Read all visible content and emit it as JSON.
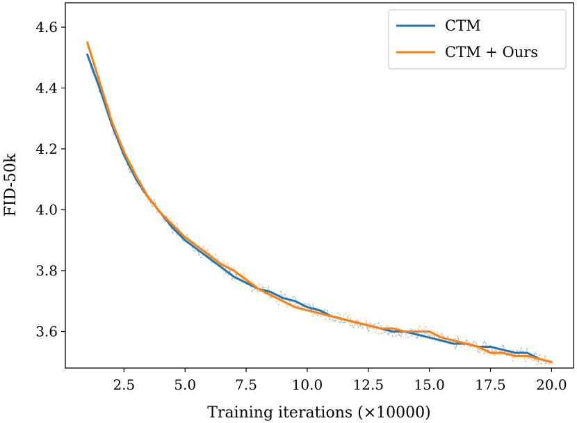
{
  "chart_data": {
    "type": "line",
    "title": "",
    "xlabel": "Training iterations (×10000)",
    "ylabel": "FID-50k",
    "xlim": [
      0.1,
      20.9
    ],
    "ylim": [
      3.48,
      4.68
    ],
    "xticks": [
      2.5,
      5.0,
      7.5,
      10.0,
      12.5,
      15.0,
      17.5,
      20.0
    ],
    "xtick_labels": [
      "2.5",
      "5.0",
      "7.5",
      "10.0",
      "12.5",
      "15.0",
      "17.5",
      "20.0"
    ],
    "yticks": [
      3.6,
      3.8,
      4.0,
      4.2,
      4.4,
      4.6
    ],
    "ytick_labels": [
      "3.6",
      "3.8",
      "4.0",
      "4.2",
      "4.4",
      "4.6"
    ],
    "grid": false,
    "legend_position": "top-right",
    "series": [
      {
        "name": "CTM",
        "color": "#1f77b4",
        "style": "solid-smoothed",
        "x": [
          1.0,
          1.5,
          2.0,
          2.5,
          3.0,
          3.5,
          4.0,
          4.5,
          5.0,
          5.5,
          6.0,
          6.5,
          7.0,
          7.5,
          8.0,
          8.5,
          9.0,
          9.5,
          10.0,
          10.5,
          11.0,
          11.5,
          12.0,
          12.5,
          13.0,
          13.5,
          14.0,
          14.5,
          15.0,
          15.5,
          16.0,
          16.5,
          17.0,
          17.5,
          18.0,
          18.5,
          19.0,
          19.5,
          20.0
        ],
        "y": [
          4.51,
          4.4,
          4.28,
          4.18,
          4.1,
          4.04,
          3.99,
          3.94,
          3.9,
          3.87,
          3.84,
          3.81,
          3.78,
          3.76,
          3.74,
          3.73,
          3.71,
          3.7,
          3.68,
          3.67,
          3.65,
          3.64,
          3.63,
          3.62,
          3.61,
          3.6,
          3.6,
          3.59,
          3.58,
          3.57,
          3.56,
          3.56,
          3.55,
          3.55,
          3.54,
          3.53,
          3.53,
          3.51,
          3.5
        ]
      },
      {
        "name": "CTM + Ours",
        "color": "#ff7f0e",
        "style": "solid-smoothed",
        "x": [
          1.0,
          1.5,
          2.0,
          2.5,
          3.0,
          3.5,
          4.0,
          4.5,
          5.0,
          5.5,
          6.0,
          6.5,
          7.0,
          7.5,
          8.0,
          8.5,
          9.0,
          9.5,
          10.0,
          10.5,
          11.0,
          11.5,
          12.0,
          12.5,
          13.0,
          13.5,
          14.0,
          14.5,
          15.0,
          15.5,
          16.0,
          16.5,
          17.0,
          17.5,
          18.0,
          18.5,
          19.0,
          19.5,
          20.0
        ],
        "y": [
          4.55,
          4.42,
          4.29,
          4.19,
          4.11,
          4.04,
          3.99,
          3.95,
          3.91,
          3.88,
          3.85,
          3.82,
          3.8,
          3.77,
          3.74,
          3.72,
          3.7,
          3.68,
          3.67,
          3.66,
          3.65,
          3.64,
          3.63,
          3.62,
          3.61,
          3.61,
          3.6,
          3.6,
          3.6,
          3.58,
          3.57,
          3.56,
          3.55,
          3.53,
          3.53,
          3.52,
          3.52,
          3.51,
          3.5
        ]
      }
    ]
  }
}
